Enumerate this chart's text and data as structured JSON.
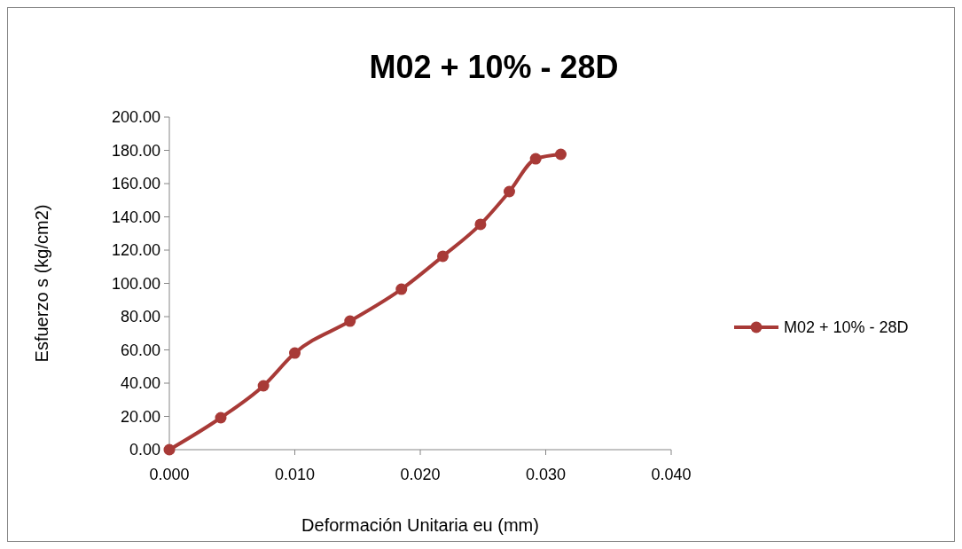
{
  "chart_data": {
    "type": "line",
    "title": "M02 + 10% - 28D",
    "xlabel": "Deformación Unitaria eu (mm)",
    "ylabel": "Esfuerzo s (kg/cm2)",
    "series": [
      {
        "name": "M02 + 10% - 28D",
        "color": "#a83a37",
        "x": [
          0,
          0.0041,
          0.0075,
          0.01,
          0.0144,
          0.0185,
          0.0218,
          0.0248,
          0.0271,
          0.0292,
          0.0312
        ],
        "values": [
          0,
          19.2,
          38.4,
          58.1,
          77.3,
          96.5,
          116.3,
          135.5,
          155.2,
          174.9,
          177.6
        ]
      }
    ],
    "xlim": [
      0,
      0.04
    ],
    "xticks": [
      {
        "value": 0,
        "label": "0.000"
      },
      {
        "value": 0.01,
        "label": "0.010"
      },
      {
        "value": 0.02,
        "label": "0.020"
      },
      {
        "value": 0.03,
        "label": "0.030"
      },
      {
        "value": 0.04,
        "label": "0.040"
      }
    ],
    "ylim": [
      0,
      200
    ],
    "yticks": [
      {
        "value": 0,
        "label": "0.00"
      },
      {
        "value": 20,
        "label": "20.00"
      },
      {
        "value": 40,
        "label": "40.00"
      },
      {
        "value": 60,
        "label": "60.00"
      },
      {
        "value": 80,
        "label": "80.00"
      },
      {
        "value": 100,
        "label": "100.00"
      },
      {
        "value": 120,
        "label": "120.00"
      },
      {
        "value": 140,
        "label": "140.00"
      },
      {
        "value": 160,
        "label": "160.00"
      },
      {
        "value": 180,
        "label": "180.00"
      },
      {
        "value": 200,
        "label": "200.00"
      }
    ],
    "grid": false,
    "legend": "right",
    "marker": "circle",
    "line_style": "solid"
  }
}
